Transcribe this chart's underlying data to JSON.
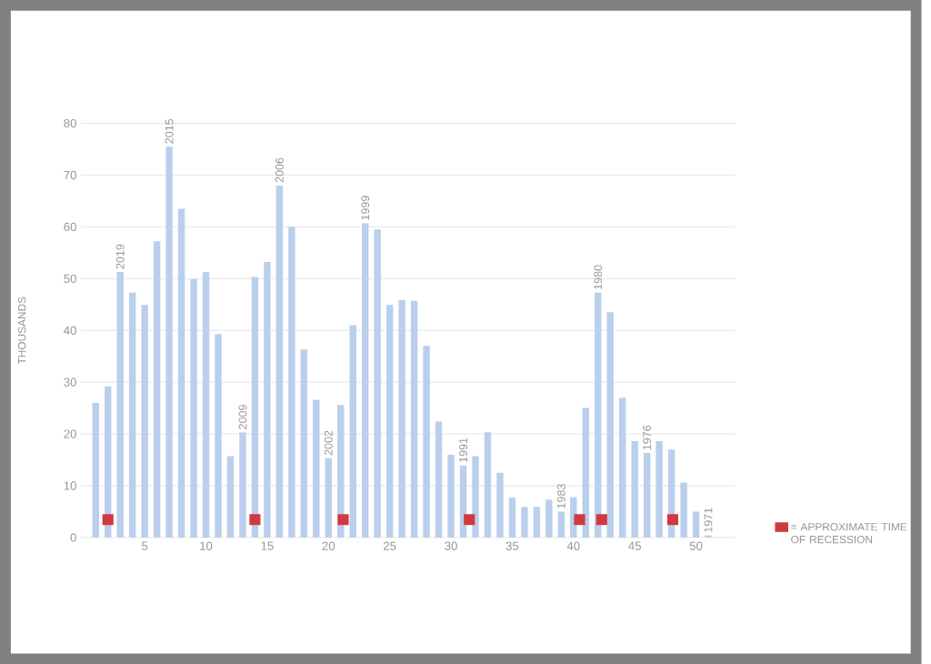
{
  "chart_data": {
    "type": "bar",
    "ylabel": "THOUSANDS",
    "x": [
      1,
      2,
      3,
      4,
      5,
      6,
      7,
      8,
      9,
      10,
      11,
      12,
      13,
      14,
      15,
      16,
      17,
      18,
      19,
      20,
      21,
      22,
      23,
      24,
      25,
      26,
      27,
      28,
      29,
      30,
      31,
      32,
      33,
      34,
      35,
      36,
      37,
      38,
      39,
      40,
      41,
      42,
      43,
      44,
      45,
      46,
      47,
      48,
      49,
      50,
      51
    ],
    "series": [
      {
        "color": "#b9cfec",
        "values": [
          26,
          29.2,
          51.3,
          47.3,
          44.9,
          57.2,
          75.5,
          63.5,
          49.9,
          51.3,
          39.3,
          15.7,
          20.3,
          50.3,
          53.2,
          68,
          60,
          36.3,
          26.6,
          15.3,
          25.6,
          41,
          60.7,
          59.5,
          44.9,
          45.9,
          45.7,
          37,
          22.4,
          16,
          13.9,
          15.7,
          20.3,
          12.5,
          7.7,
          5.9,
          5.9,
          7.3,
          5,
          7.8,
          25,
          47.3,
          43.5,
          27,
          18.6,
          16.3,
          18.6,
          17,
          10.6,
          5,
          0.4
        ]
      },
      {
        "name": "= APPROXIMATE TIME OF RECESSION",
        "color": "#d0393e",
        "x": [
          2,
          14,
          21.2,
          31.5,
          40.5,
          42.3,
          48.1
        ],
        "base": [
          2.4,
          2.4,
          2.4,
          2.4,
          2.4,
          2.4,
          2.4
        ],
        "values": [
          2.1,
          2.1,
          2.1,
          2.1,
          2.1,
          2.1,
          2.1
        ]
      }
    ],
    "xlim": [
      -0.2,
      53.2
    ],
    "ylim": [
      0,
      80
    ],
    "xticks": [
      5,
      10,
      15,
      20,
      25,
      30,
      35,
      40,
      45,
      50
    ],
    "yticks": [
      0,
      10,
      20,
      30,
      40,
      50,
      60,
      70,
      80
    ],
    "grid": "y",
    "legend": "bottom right",
    "annotations": [
      {
        "text": "2019",
        "x": 3,
        "y": 51.3
      },
      {
        "text": "2015",
        "x": 7,
        "y": 75.5
      },
      {
        "text": "2009",
        "x": 13,
        "y": 20.3
      },
      {
        "text": "2006",
        "x": 16,
        "y": 68
      },
      {
        "text": "2002",
        "x": 20,
        "y": 15.3
      },
      {
        "text": "1999",
        "x": 23,
        "y": 60.7
      },
      {
        "text": "1991",
        "x": 31,
        "y": 13.9
      },
      {
        "text": "1983",
        "x": 39,
        "y": 5
      },
      {
        "text": "1980",
        "x": 42,
        "y": 47.3
      },
      {
        "text": "1976",
        "x": 46,
        "y": 16.3
      },
      {
        "text": "1971",
        "x": 51,
        "y": 0.4
      }
    ]
  }
}
